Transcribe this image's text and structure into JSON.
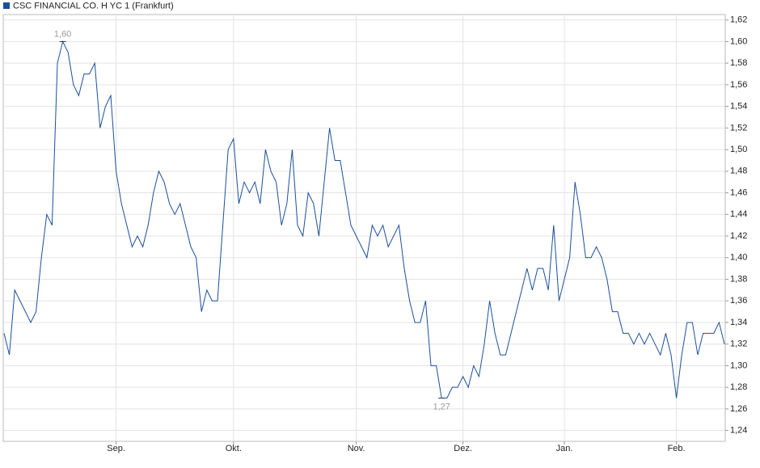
{
  "chart_data": {
    "type": "line",
    "series": [
      {
        "name": "CSC FINANCIAL CO. H YC 1 (Frankfurt)",
        "color": "#1b4f9c",
        "values": [
          1.33,
          1.31,
          1.37,
          1.36,
          1.35,
          1.34,
          1.35,
          1.4,
          1.44,
          1.43,
          1.58,
          1.6,
          1.59,
          1.56,
          1.55,
          1.57,
          1.57,
          1.58,
          1.52,
          1.54,
          1.55,
          1.48,
          1.45,
          1.43,
          1.41,
          1.42,
          1.41,
          1.43,
          1.46,
          1.48,
          1.47,
          1.45,
          1.44,
          1.45,
          1.43,
          1.41,
          1.4,
          1.35,
          1.37,
          1.36,
          1.36,
          1.43,
          1.5,
          1.51,
          1.45,
          1.47,
          1.46,
          1.47,
          1.45,
          1.5,
          1.48,
          1.47,
          1.43,
          1.45,
          1.5,
          1.43,
          1.42,
          1.46,
          1.45,
          1.42,
          1.47,
          1.52,
          1.49,
          1.49,
          1.46,
          1.43,
          1.42,
          1.41,
          1.4,
          1.43,
          1.42,
          1.43,
          1.41,
          1.42,
          1.43,
          1.39,
          1.36,
          1.34,
          1.34,
          1.36,
          1.3,
          1.3,
          1.27,
          1.27,
          1.28,
          1.28,
          1.29,
          1.28,
          1.3,
          1.29,
          1.32,
          1.36,
          1.33,
          1.31,
          1.31,
          1.33,
          1.35,
          1.37,
          1.39,
          1.37,
          1.39,
          1.39,
          1.37,
          1.43,
          1.36,
          1.38,
          1.4,
          1.47,
          1.44,
          1.4,
          1.4,
          1.41,
          1.4,
          1.38,
          1.35,
          1.35,
          1.33,
          1.33,
          1.32,
          1.33,
          1.32,
          1.33,
          1.32,
          1.31,
          1.33,
          1.31,
          1.27,
          1.31,
          1.34,
          1.34,
          1.31,
          1.33,
          1.33,
          1.33,
          1.34,
          1.32
        ]
      }
    ],
    "xlim": [
      0,
      135
    ],
    "xticks": [
      {
        "value": 21,
        "label": "Sep."
      },
      {
        "value": 43,
        "label": "Okt."
      },
      {
        "value": 66,
        "label": "Nov."
      },
      {
        "value": 86,
        "label": "Dez."
      },
      {
        "value": 105,
        "label": "Jan."
      },
      {
        "value": 126,
        "label": "Feb."
      }
    ],
    "ylim": [
      1.23,
      1.625
    ],
    "yticks": [
      {
        "value": 1.24,
        "label": "1,24"
      },
      {
        "value": 1.26,
        "label": "1,26"
      },
      {
        "value": 1.28,
        "label": "1,28"
      },
      {
        "value": 1.3,
        "label": "1,30"
      },
      {
        "value": 1.32,
        "label": "1,32"
      },
      {
        "value": 1.34,
        "label": "1,34"
      },
      {
        "value": 1.36,
        "label": "1,36"
      },
      {
        "value": 1.38,
        "label": "1,38"
      },
      {
        "value": 1.4,
        "label": "1,40"
      },
      {
        "value": 1.42,
        "label": "1,42"
      },
      {
        "value": 1.44,
        "label": "1,44"
      },
      {
        "value": 1.46,
        "label": "1,46"
      },
      {
        "value": 1.48,
        "label": "1,48"
      },
      {
        "value": 1.5,
        "label": "1,50"
      },
      {
        "value": 1.52,
        "label": "1,52"
      },
      {
        "value": 1.54,
        "label": "1,54"
      },
      {
        "value": 1.56,
        "label": "1,56"
      },
      {
        "value": 1.58,
        "label": "1,58"
      },
      {
        "value": 1.6,
        "label": "1,60"
      },
      {
        "value": 1.62,
        "label": "1,62"
      }
    ],
    "grid": true,
    "annotations": [
      {
        "x": 11,
        "value": 1.6,
        "label": "1,60",
        "position": "above"
      },
      {
        "x": 82,
        "value": 1.27,
        "label": "1,27",
        "position": "below"
      }
    ]
  }
}
